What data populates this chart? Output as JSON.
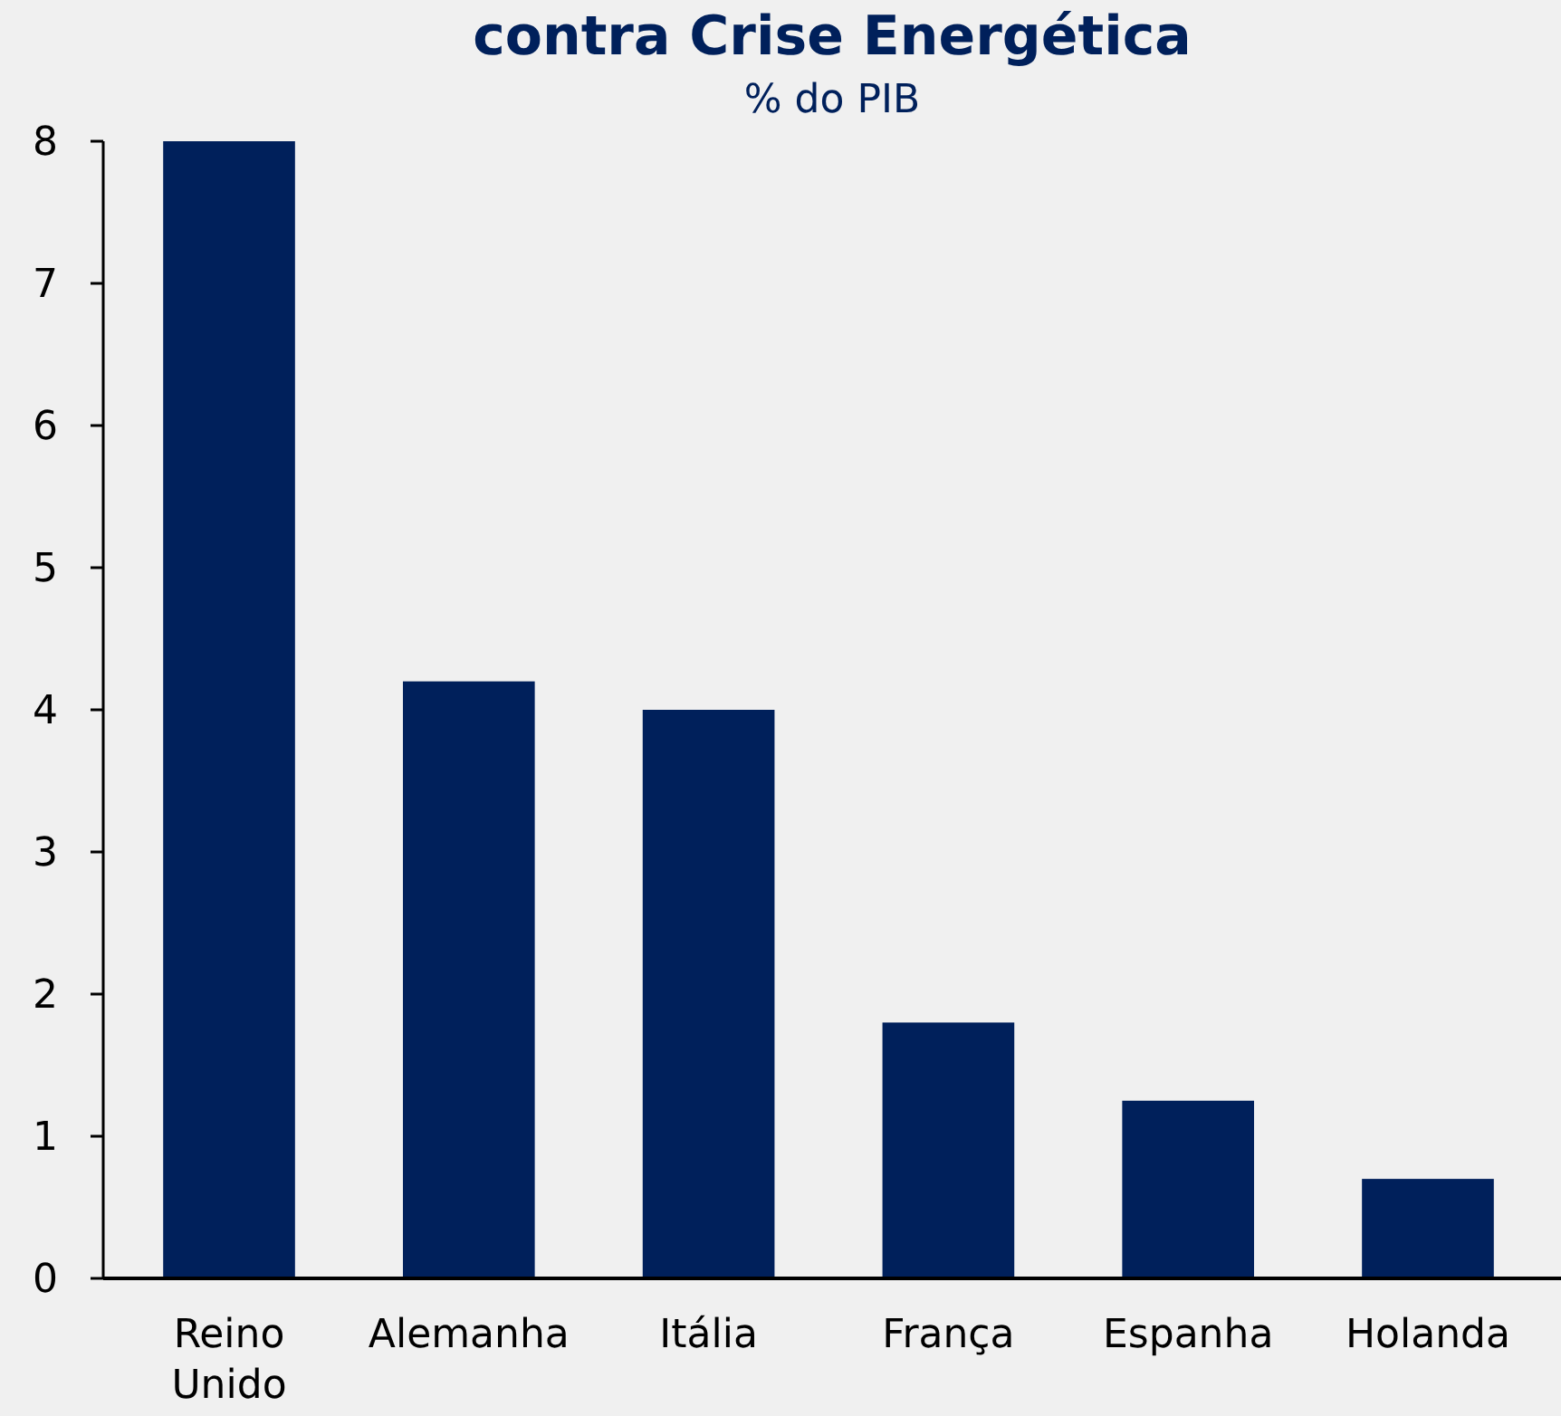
{
  "chart_data": {
    "type": "bar",
    "title": "contra Crise Energética",
    "subtitle": "% do PIB",
    "categories": [
      "Reino Unido",
      "Alemanha",
      "Itália",
      "França",
      "Espanha",
      "Holanda"
    ],
    "values": [
      8,
      4.2,
      4,
      1.8,
      1.25,
      0.7
    ],
    "color": "#00205b",
    "ylim": [
      0,
      8
    ],
    "yticks": [
      0,
      1,
      2,
      3,
      4,
      5,
      6,
      7,
      8
    ],
    "grid": false
  }
}
